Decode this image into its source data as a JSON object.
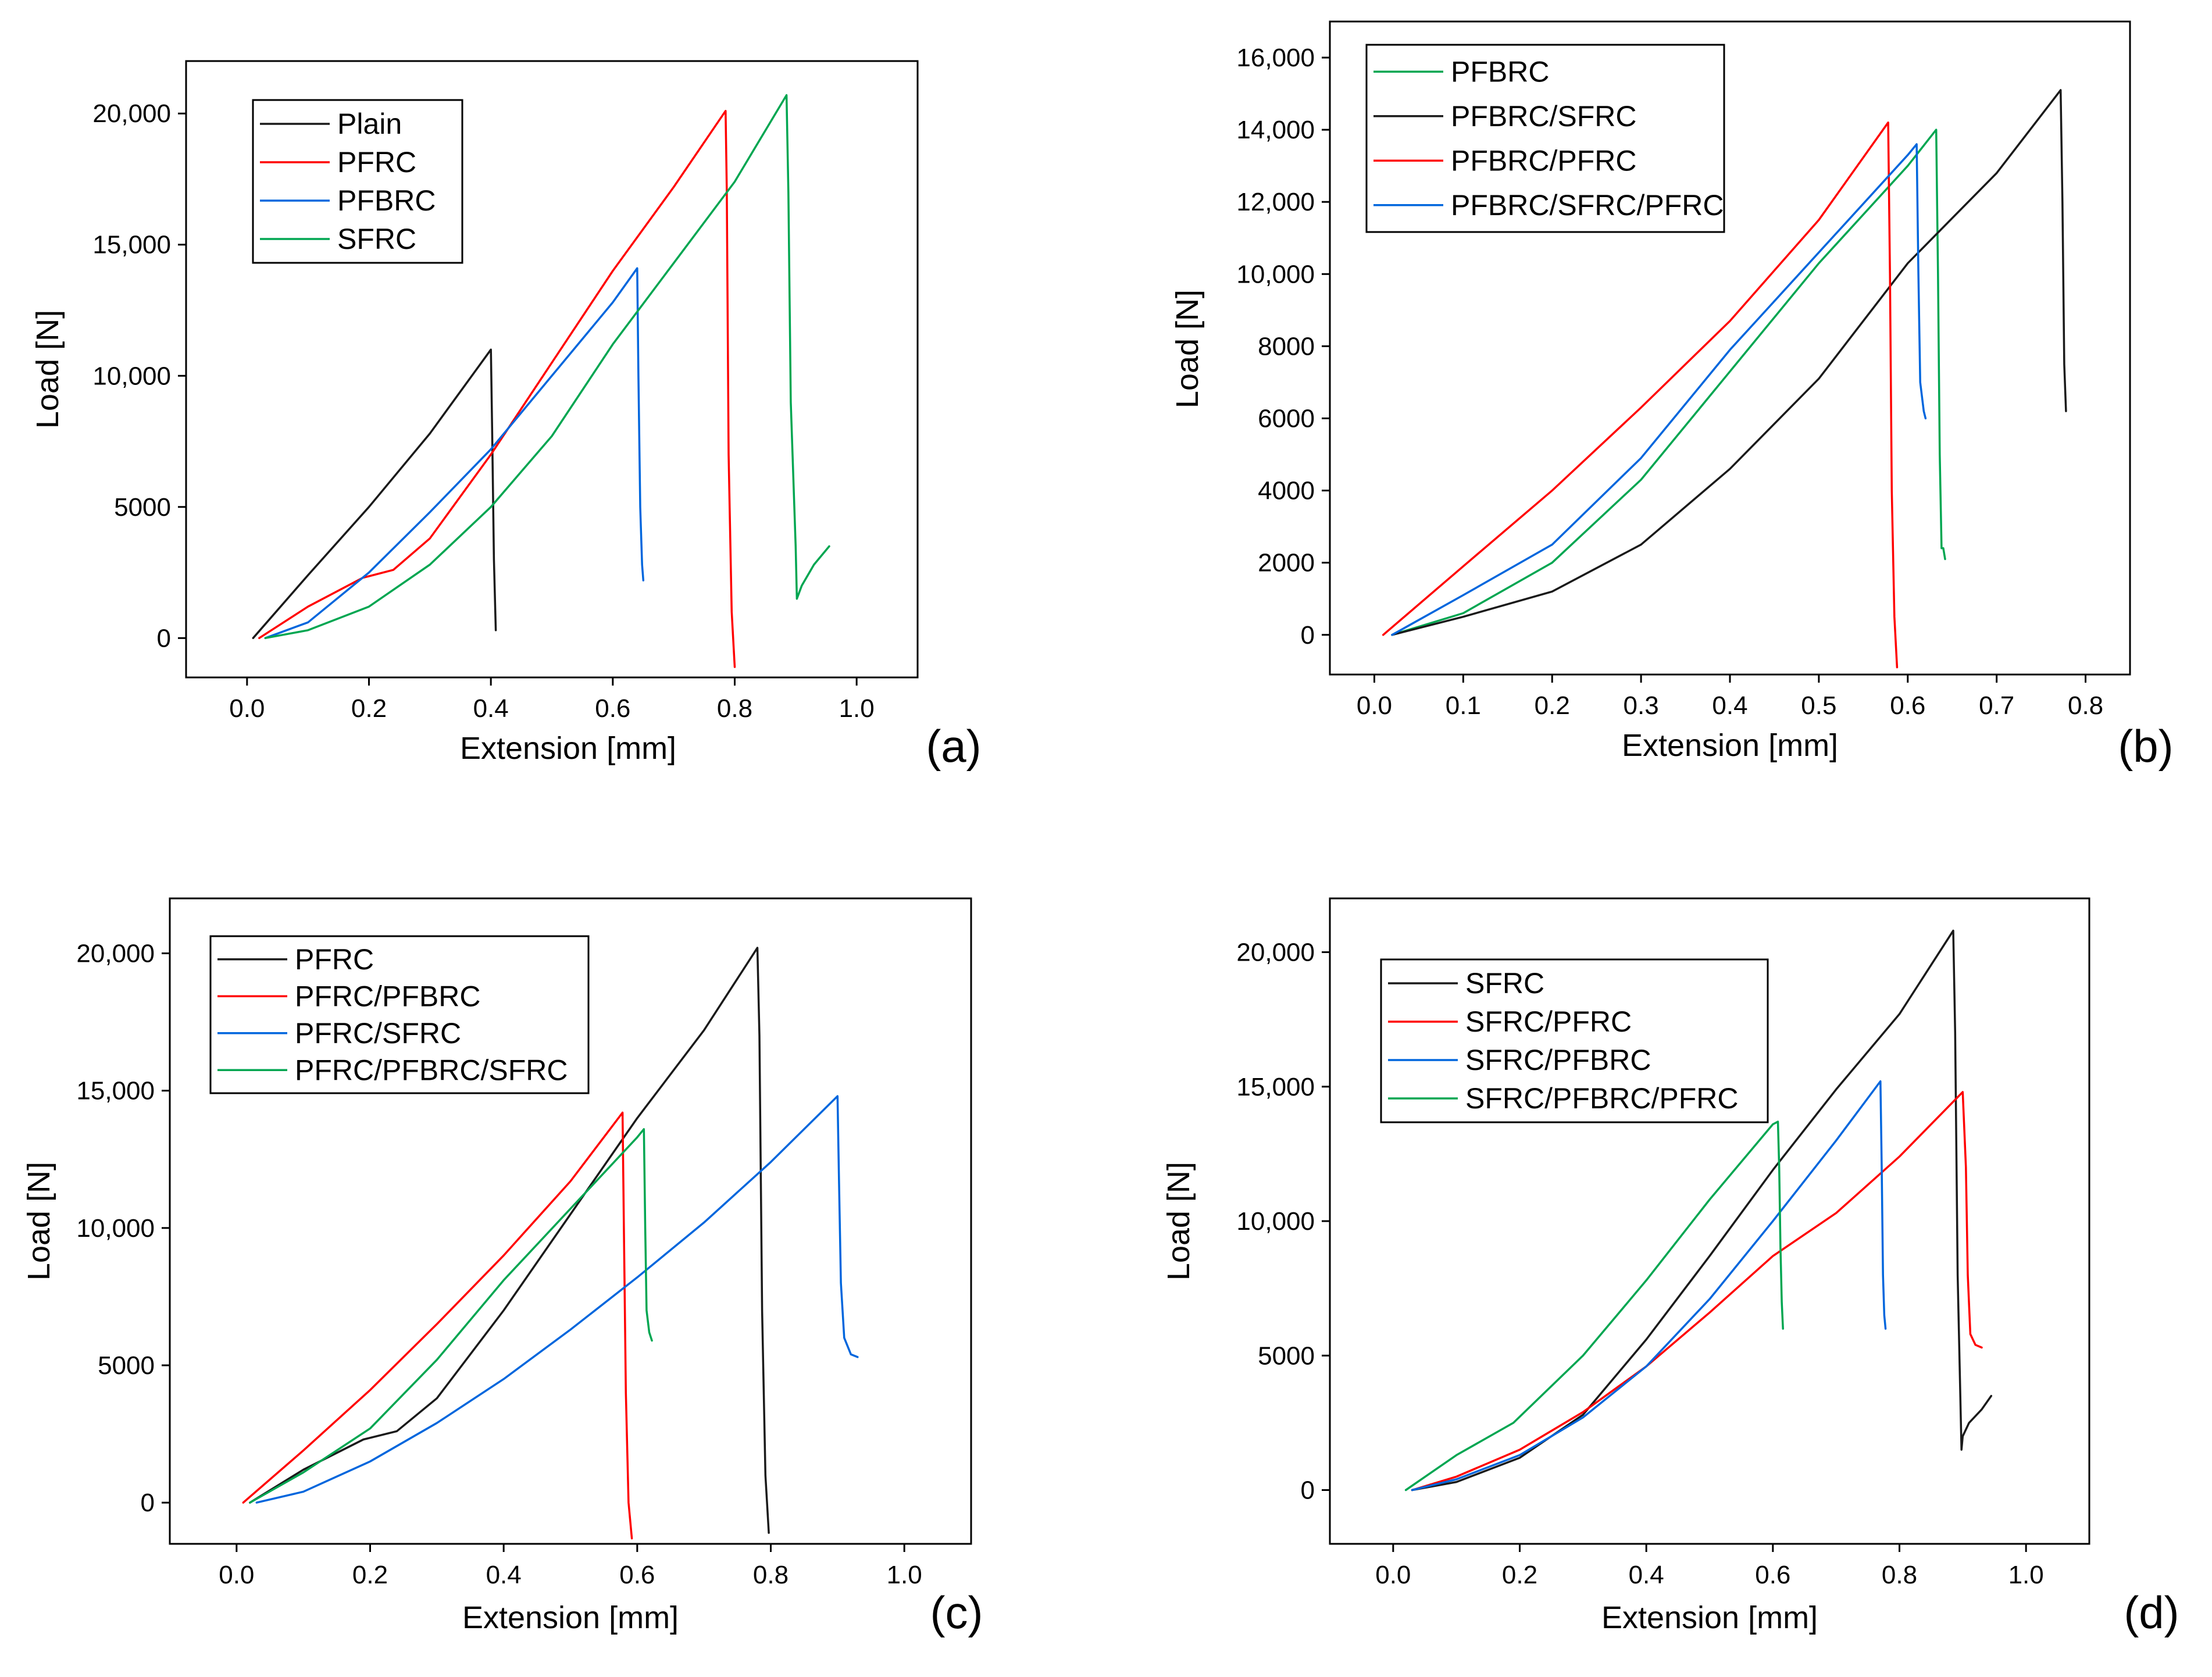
{
  "chart_data": [
    {
      "type": "line",
      "panel_label": "(a)",
      "xlabel": "Extension [mm]",
      "ylabel": "Load [N]",
      "xlim": [
        -0.1,
        1.1
      ],
      "ylim": [
        -1500,
        22000
      ],
      "xticks": [
        0.0,
        0.2,
        0.4,
        0.6,
        0.8,
        1.0
      ],
      "xtick_labels": [
        "0.0",
        "0.2",
        "0.4",
        "0.6",
        "0.8",
        "1.0"
      ],
      "yticks": [
        0,
        5000,
        10000,
        15000,
        20000
      ],
      "ytick_labels": [
        "0",
        "5000",
        "10,000",
        "15,000",
        "20,000"
      ],
      "legend_position": "top-left",
      "series": [
        {
          "name": "Plain",
          "color": "#1a1a1a",
          "x": [
            0.01,
            0.1,
            0.2,
            0.3,
            0.4,
            0.402,
            0.405,
            0.408
          ],
          "y": [
            0,
            2400,
            5000,
            7800,
            11000,
            8000,
            3000,
            300
          ]
        },
        {
          "name": "PFRC",
          "color": "#ff0000",
          "x": [
            0.02,
            0.1,
            0.19,
            0.24,
            0.3,
            0.4,
            0.5,
            0.6,
            0.7,
            0.785,
            0.787,
            0.79,
            0.795,
            0.8
          ],
          "y": [
            0,
            1200,
            2300,
            2600,
            3800,
            7000,
            10500,
            14000,
            17200,
            20100,
            17000,
            7000,
            1000,
            -1100
          ]
        },
        {
          "name": "PFBRC",
          "color": "#0066dd",
          "x": [
            0.03,
            0.1,
            0.2,
            0.3,
            0.4,
            0.5,
            0.6,
            0.64,
            0.642,
            0.645,
            0.648,
            0.65
          ],
          "y": [
            0,
            600,
            2500,
            4800,
            7200,
            10000,
            12800,
            14100,
            10000,
            5000,
            2800,
            2200
          ]
        },
        {
          "name": "SFRC",
          "color": "#00a651",
          "x": [
            0.03,
            0.1,
            0.2,
            0.3,
            0.4,
            0.5,
            0.6,
            0.7,
            0.8,
            0.885,
            0.888,
            0.892,
            0.9,
            0.902,
            0.91,
            0.93,
            0.955
          ],
          "y": [
            0,
            300,
            1200,
            2800,
            5000,
            7700,
            11200,
            14300,
            17400,
            20700,
            17000,
            9000,
            3500,
            1500,
            2000,
            2800,
            3500
          ]
        }
      ]
    },
    {
      "type": "line",
      "panel_label": "(b)",
      "xlabel": "Extension [mm]",
      "ylabel": "Load [N]",
      "xlim": [
        -0.05,
        0.85
      ],
      "ylim": [
        -1100,
        17000
      ],
      "xticks": [
        0.0,
        0.1,
        0.2,
        0.3,
        0.4,
        0.5,
        0.6,
        0.7,
        0.8
      ],
      "xtick_labels": [
        "0.0",
        "0.1",
        "0.2",
        "0.3",
        "0.4",
        "0.5",
        "0.6",
        "0.7",
        "0.8"
      ],
      "yticks": [
        0,
        2000,
        4000,
        6000,
        8000,
        10000,
        12000,
        14000,
        16000
      ],
      "ytick_labels": [
        "0",
        "2000",
        "4000",
        "6000",
        "8000",
        "10,000",
        "12,000",
        "14,000",
        "16,000"
      ],
      "legend_position": "top-left",
      "series": [
        {
          "name": "PFBRC",
          "color": "#00a651",
          "x": [
            0.02,
            0.1,
            0.2,
            0.3,
            0.4,
            0.5,
            0.6,
            0.632,
            0.634,
            0.636,
            0.638,
            0.64,
            0.642
          ],
          "y": [
            0,
            600,
            2000,
            4300,
            7300,
            10300,
            13000,
            14000,
            10000,
            5000,
            2400,
            2400,
            2100
          ]
        },
        {
          "name": "PFBRC/SFRC",
          "color": "#1a1a1a",
          "x": [
            0.02,
            0.1,
            0.2,
            0.3,
            0.4,
            0.5,
            0.6,
            0.7,
            0.772,
            0.774,
            0.776,
            0.778
          ],
          "y": [
            0,
            500,
            1200,
            2500,
            4600,
            7100,
            10300,
            12800,
            15100,
            12000,
            7500,
            6200
          ]
        },
        {
          "name": "PFBRC/PFRC",
          "color": "#ff0000",
          "x": [
            0.01,
            0.1,
            0.2,
            0.3,
            0.4,
            0.5,
            0.578,
            0.58,
            0.582,
            0.585,
            0.588
          ],
          "y": [
            0,
            1900,
            4000,
            6300,
            8700,
            11500,
            14200,
            10000,
            4000,
            500,
            -900
          ]
        },
        {
          "name": "PFBRC/SFRC/PFRC",
          "color": "#0066dd",
          "x": [
            0.02,
            0.1,
            0.2,
            0.3,
            0.4,
            0.5,
            0.6,
            0.61,
            0.612,
            0.614,
            0.618,
            0.62
          ],
          "y": [
            0,
            1100,
            2500,
            4900,
            7900,
            10600,
            13300,
            13600,
            10000,
            7000,
            6200,
            6000
          ]
        }
      ]
    },
    {
      "type": "line",
      "panel_label": "(c)",
      "xlabel": "Extension [mm]",
      "ylabel": "Load [N]",
      "xlim": [
        -0.1,
        1.1
      ],
      "ylim": [
        -1500,
        22000
      ],
      "xticks": [
        0.0,
        0.2,
        0.4,
        0.6,
        0.8,
        1.0
      ],
      "xtick_labels": [
        "0.0",
        "0.2",
        "0.4",
        "0.6",
        "0.8",
        "1.0"
      ],
      "yticks": [
        0,
        5000,
        10000,
        15000,
        20000
      ],
      "ytick_labels": [
        "0",
        "5000",
        "10,000",
        "15,000",
        "20,000"
      ],
      "legend_position": "top-left",
      "series": [
        {
          "name": "PFRC",
          "color": "#1a1a1a",
          "x": [
            0.02,
            0.1,
            0.19,
            0.24,
            0.3,
            0.4,
            0.5,
            0.6,
            0.7,
            0.78,
            0.783,
            0.787,
            0.792,
            0.797
          ],
          "y": [
            0,
            1200,
            2300,
            2600,
            3800,
            7000,
            10500,
            14000,
            17200,
            20200,
            17000,
            7000,
            1000,
            -1100
          ]
        },
        {
          "name": "PFRC/PFBRC",
          "color": "#ff0000",
          "x": [
            0.01,
            0.1,
            0.2,
            0.3,
            0.4,
            0.5,
            0.578,
            0.58,
            0.583,
            0.587,
            0.592
          ],
          "y": [
            0,
            1900,
            4100,
            6500,
            9000,
            11700,
            14200,
            10000,
            4000,
            0,
            -1300
          ]
        },
        {
          "name": "PFRC/SFRC",
          "color": "#0066dd",
          "x": [
            0.03,
            0.1,
            0.2,
            0.3,
            0.4,
            0.5,
            0.6,
            0.7,
            0.8,
            0.9,
            0.902,
            0.905,
            0.91,
            0.92,
            0.93
          ],
          "y": [
            0,
            400,
            1500,
            2900,
            4500,
            6300,
            8200,
            10200,
            12400,
            14800,
            12000,
            8000,
            6000,
            5400,
            5300
          ]
        },
        {
          "name": "PFRC/PFBRC/SFRC",
          "color": "#00a651",
          "x": [
            0.02,
            0.1,
            0.2,
            0.3,
            0.4,
            0.5,
            0.6,
            0.61,
            0.612,
            0.614,
            0.618,
            0.622
          ],
          "y": [
            0,
            1100,
            2700,
            5200,
            8100,
            10700,
            13300,
            13600,
            10000,
            7000,
            6200,
            5900
          ]
        }
      ]
    },
    {
      "type": "line",
      "panel_label": "(d)",
      "xlabel": "Extension [mm]",
      "ylabel": "Load [N]",
      "xlim": [
        -0.1,
        1.1
      ],
      "ylim": [
        -2000,
        22000
      ],
      "xticks": [
        0.0,
        0.2,
        0.4,
        0.6,
        0.8,
        1.0
      ],
      "xtick_labels": [
        "0.0",
        "0.2",
        "0.4",
        "0.6",
        "0.8",
        "1.0"
      ],
      "yticks": [
        0,
        5000,
        10000,
        15000,
        20000
      ],
      "ytick_labels": [
        "0",
        "5000",
        "10,000",
        "15,000",
        "20,000"
      ],
      "legend_position": "top-left",
      "series": [
        {
          "name": "SFRC",
          "color": "#1a1a1a",
          "x": [
            0.03,
            0.1,
            0.2,
            0.3,
            0.4,
            0.5,
            0.6,
            0.7,
            0.8,
            0.885,
            0.888,
            0.892,
            0.898,
            0.9,
            0.91,
            0.93,
            0.945
          ],
          "y": [
            0,
            300,
            1200,
            2800,
            5600,
            8700,
            11900,
            14900,
            17700,
            20800,
            17000,
            8000,
            1500,
            2000,
            2500,
            3000,
            3500
          ]
        },
        {
          "name": "SFRC/PFRC",
          "color": "#ff0000",
          "x": [
            0.03,
            0.1,
            0.2,
            0.3,
            0.4,
            0.5,
            0.6,
            0.7,
            0.8,
            0.9,
            0.905,
            0.908,
            0.912,
            0.92,
            0.93
          ],
          "y": [
            0,
            500,
            1500,
            2900,
            4600,
            6600,
            8700,
            10300,
            12400,
            14800,
            12000,
            8000,
            5800,
            5400,
            5300
          ]
        },
        {
          "name": "SFRC/PFBRC",
          "color": "#0066dd",
          "x": [
            0.03,
            0.1,
            0.2,
            0.3,
            0.4,
            0.5,
            0.6,
            0.7,
            0.77,
            0.772,
            0.774,
            0.776,
            0.778
          ],
          "y": [
            0,
            400,
            1300,
            2700,
            4600,
            7100,
            10000,
            13000,
            15200,
            12000,
            8000,
            6500,
            6000
          ]
        },
        {
          "name": "SFRC/PFBRC/PFRC",
          "color": "#00a651",
          "x": [
            0.02,
            0.1,
            0.19,
            0.3,
            0.4,
            0.5,
            0.6,
            0.608,
            0.61,
            0.612,
            0.614,
            0.616
          ],
          "y": [
            0,
            1300,
            2500,
            5000,
            7800,
            10800,
            13600,
            13700,
            12000,
            9000,
            7000,
            6000
          ]
        }
      ]
    }
  ]
}
